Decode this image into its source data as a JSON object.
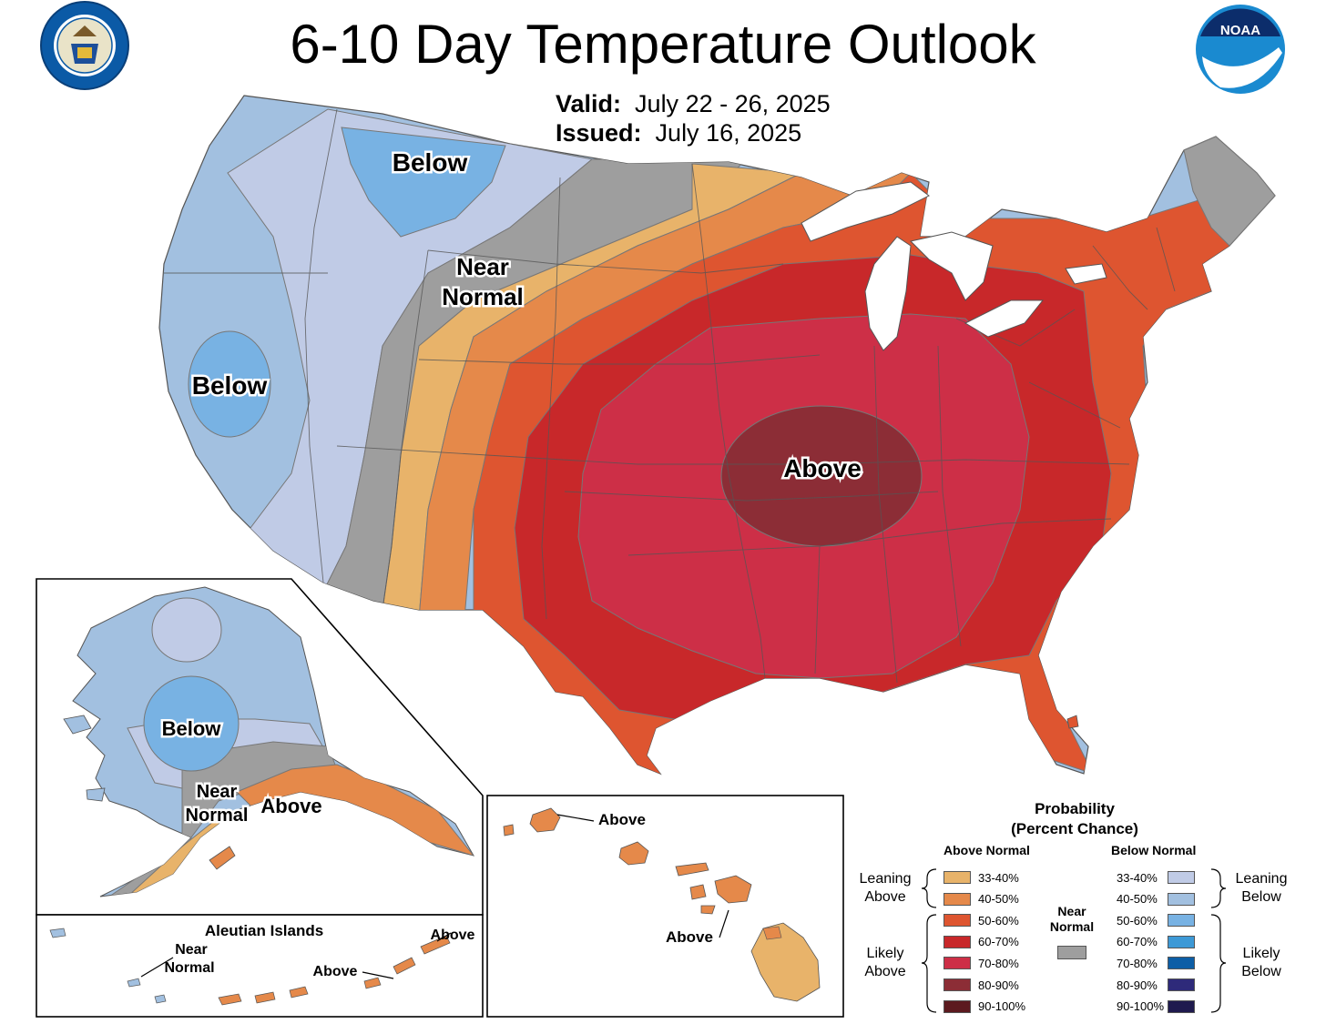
{
  "title": "6-10 Day Temperature Outlook",
  "valid_label": "Valid:",
  "valid_value": "July 22 - 26, 2025",
  "issued_label": "Issued:",
  "issued_value": "July 16, 2025",
  "logos": {
    "left": "DEPARTMENT OF COMMERCE · UNITED STATES OF AMERICA",
    "right": "NOAA"
  },
  "map_labels": {
    "below_north": "Below",
    "below_west": "Below",
    "near_normal": [
      "Near",
      "Normal"
    ],
    "above_center": "Above",
    "alaska_below": "Below",
    "alaska_near": [
      "Near",
      "Normal"
    ],
    "alaska_above": "Above",
    "aleutian_title": "Aleutian Islands",
    "aleutian_near": [
      "Near",
      "Normal"
    ],
    "aleutian_above1": "Above",
    "aleutian_above2": "Above",
    "hawaii_above1": "Above",
    "hawaii_above2": "Above"
  },
  "legend": {
    "title_line1": "Probability",
    "title_line2": "(Percent Chance)",
    "above_header": "Above Normal",
    "below_header": "Below Normal",
    "near_label": [
      "Near",
      "Normal"
    ],
    "near_color": "#9e9e9e",
    "leaning_above": [
      "Leaning",
      "Above"
    ],
    "likely_above": [
      "Likely",
      "Above"
    ],
    "leaning_below": [
      "Leaning",
      "Below"
    ],
    "likely_below": [
      "Likely",
      "Below"
    ],
    "above": [
      {
        "range": "33-40%",
        "color": "#e8b36a"
      },
      {
        "range": "40-50%",
        "color": "#e5894a"
      },
      {
        "range": "50-60%",
        "color": "#de5530"
      },
      {
        "range": "60-70%",
        "color": "#c8282a"
      },
      {
        "range": "70-80%",
        "color": "#cd2f47"
      },
      {
        "range": "80-90%",
        "color": "#8c2d36"
      },
      {
        "range": "90-100%",
        "color": "#5c1a1f"
      }
    ],
    "below": [
      {
        "range": "33-40%",
        "color": "#c0cbe6"
      },
      {
        "range": "40-50%",
        "color": "#a2c0e0"
      },
      {
        "range": "50-60%",
        "color": "#78b2e3"
      },
      {
        "range": "60-70%",
        "color": "#3d99d6"
      },
      {
        "range": "70-80%",
        "color": "#0d5ea6"
      },
      {
        "range": "80-90%",
        "color": "#2e2a7a"
      },
      {
        "range": "90-100%",
        "color": "#1f1a4e"
      }
    ]
  }
}
